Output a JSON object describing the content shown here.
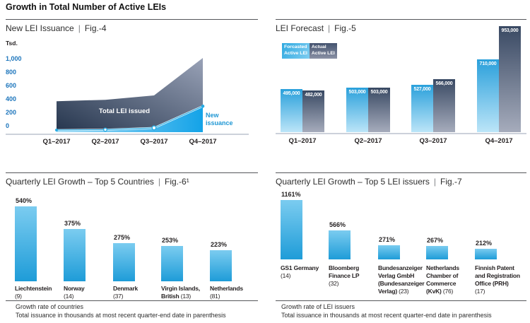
{
  "page_title": "Growth in Total Number of Active LEIs",
  "ui": {
    "pipe": "|"
  },
  "colors": {
    "accent_blue": "#29abe2",
    "bar_blue_top": "#7bccf0",
    "bar_blue_bottom": "#1e9cd8",
    "forecast_blue_top": "#2aa0db",
    "forecast_blue_bottom": "#bce5f8",
    "slate_dark": "#394963",
    "slate_light": "#a6acbc",
    "axis_label_blue": "#1c75bc",
    "line_label_blue": "#1f97d4",
    "text_dark": "#231f20",
    "rule_gray": "#55565a",
    "axis_line_gray": "#ccd1da"
  },
  "chart_data": [
    {
      "id": "fig4",
      "type": "area",
      "title": "New LEI Issuance",
      "fig": "Fig.-4",
      "ylabel": "Tsd.",
      "ylim": [
        0,
        1000
      ],
      "y_ticks": [
        "1,000",
        "800",
        "600",
        "400",
        "200",
        "0"
      ],
      "categories": [
        "Q1–2017",
        "Q2–2017",
        "Q3–2017",
        "Q4–2017"
      ],
      "stacked": true,
      "grid": false,
      "series": [
        {
          "name": "Total LEI issued",
          "values": [
            400,
            420,
            480,
            1000
          ]
        },
        {
          "name": "New issuance",
          "values": [
            0,
            5,
            30,
            330
          ]
        }
      ],
      "annotations": {
        "area_label": "Total LEI issued",
        "line_label": [
          "New",
          "issuance"
        ]
      }
    },
    {
      "id": "fig5",
      "type": "bar",
      "title": "LEI Forecast",
      "fig": "Fig.-5",
      "legend_position": "top-left",
      "categories": [
        "Q1–2017",
        "Q2–2017",
        "Q3–2017",
        "Q4–2017"
      ],
      "series": [
        {
          "name": "Forcasted Active LEI",
          "legend_lines": [
            "Forcasted",
            "Active LEI"
          ],
          "values": [
            495000,
            503000,
            527000,
            710000
          ],
          "labels": [
            "495,000",
            "503,000",
            "527,000",
            "710,000"
          ]
        },
        {
          "name": "Actual Active LEI",
          "legend_lines": [
            "Actual",
            "Active LEI"
          ],
          "values": [
            482000,
            503000,
            566000,
            953000
          ],
          "labels": [
            "482,000",
            "503,000",
            "566,000",
            "953,000"
          ]
        }
      ]
    },
    {
      "id": "fig6",
      "type": "bar",
      "title": "Quarterly LEI Growth – Top 5 Countries",
      "fig": "Fig.-6¹",
      "values": [
        540,
        375,
        275,
        253,
        223
      ],
      "labels": [
        "540%",
        "375%",
        "275%",
        "253%",
        "223%"
      ],
      "categories": [
        {
          "lines": [
            [
              {
                "t": "Liechtenstein",
                "b": true
              }
            ],
            [
              {
                "t": "(9)",
                "b": false
              }
            ]
          ]
        },
        {
          "lines": [
            [
              {
                "t": "Norway",
                "b": true
              }
            ],
            [
              {
                "t": "(14)",
                "b": false
              }
            ]
          ]
        },
        {
          "lines": [
            [
              {
                "t": "Denmark",
                "b": true
              }
            ],
            [
              {
                "t": "(37)",
                "b": false
              }
            ]
          ]
        },
        {
          "lines": [
            [
              {
                "t": "Virgin Islands,",
                "b": true
              }
            ],
            [
              {
                "t": "British",
                "b": true
              },
              {
                "t": " (13)",
                "b": false
              }
            ]
          ]
        },
        {
          "lines": [
            [
              {
                "t": "Netherlands",
                "b": true
              }
            ],
            [
              {
                "t": "(81)",
                "b": false
              }
            ]
          ]
        }
      ]
    },
    {
      "id": "fig7",
      "type": "bar",
      "title": "Quarterly LEI Growth – Top 5 LEI issuers",
      "fig": "Fig.-7",
      "values": [
        1161,
        566,
        271,
        267,
        212
      ],
      "labels": [
        "1161%",
        "566%",
        "271%",
        "267%",
        "212%"
      ],
      "categories": [
        {
          "lines": [
            [
              {
                "t": "GS1 Germany",
                "b": true
              }
            ],
            [
              {
                "t": "(14)",
                "b": false
              }
            ]
          ]
        },
        {
          "lines": [
            [
              {
                "t": "Bloomberg",
                "b": true
              }
            ],
            [
              {
                "t": "Finance LP",
                "b": true
              }
            ],
            [
              {
                "t": "(32)",
                "b": false
              }
            ]
          ]
        },
        {
          "lines": [
            [
              {
                "t": "Bundesanzeiger",
                "b": true
              }
            ],
            [
              {
                "t": "Verlag GmbH",
                "b": true
              }
            ],
            [
              {
                "t": "(Bundesanzeiger",
                "b": true
              }
            ],
            [
              {
                "t": "Verlag)",
                "b": true
              },
              {
                "t": " (23)",
                "b": false
              }
            ]
          ]
        },
        {
          "lines": [
            [
              {
                "t": "Netherlands",
                "b": true
              }
            ],
            [
              {
                "t": "Chamber of",
                "b": true
              }
            ],
            [
              {
                "t": "Commerce",
                "b": true
              }
            ],
            [
              {
                "t": "(KvK)",
                "b": true
              },
              {
                "t": " (76)",
                "b": false
              }
            ]
          ]
        },
        {
          "lines": [
            [
              {
                "t": "Finnish Patent",
                "b": true
              }
            ],
            [
              {
                "t": "and Registration",
                "b": true
              }
            ],
            [
              {
                "t": "Office (PRH)",
                "b": true
              }
            ],
            [
              {
                "t": "(17)",
                "b": false
              }
            ]
          ]
        }
      ]
    }
  ],
  "footnotes": {
    "left": [
      "Growth rate of countries",
      "Total issuance in thousands at most recent quarter-end date in parenthesis"
    ],
    "right": [
      "Growth rate of LEI issuers",
      "Total issuance in thousands at most recent quarter-end date in parenthesis"
    ]
  }
}
